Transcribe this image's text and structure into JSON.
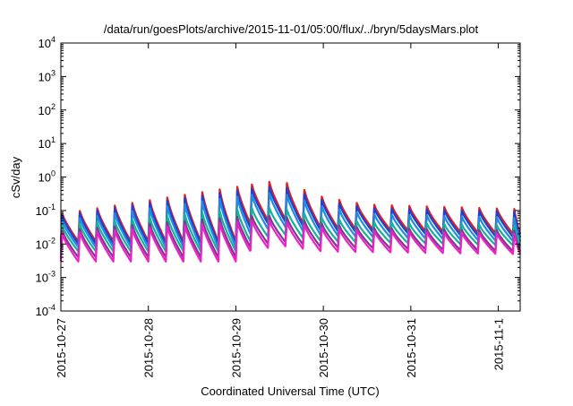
{
  "chart_data": {
    "type": "line",
    "title": "/data/run/goesPlots/archive/2015-11-01/05:00/flux/../bryn/5daysMars.plot",
    "xlabel": "Coordinated Universal Time (UTC)",
    "ylabel": "cSv/day",
    "x_range": [
      "2015-10-27",
      "2015-11-01T06:00"
    ],
    "ylim": [
      0.0001,
      10000
    ],
    "y_scale": "log",
    "grid": false,
    "legend": "none",
    "x_ticks": [
      {
        "date": "2015-10-27",
        "label": "2015-10-27"
      },
      {
        "date": "2015-10-28",
        "label": "2015-10-28"
      },
      {
        "date": "2015-10-29",
        "label": "2015-10-29"
      },
      {
        "date": "2015-10-30",
        "label": "2015-10-30"
      },
      {
        "date": "2015-10-31",
        "label": "2015-10-31"
      },
      {
        "date": "2015-11-01",
        "label": "2015-11-1"
      }
    ],
    "y_ticks": [
      {
        "value": 0.0001,
        "base": "10",
        "exp": "-4"
      },
      {
        "value": 0.001,
        "base": "10",
        "exp": "-3"
      },
      {
        "value": 0.01,
        "base": "10",
        "exp": "-2"
      },
      {
        "value": 0.1,
        "base": "10",
        "exp": "-1"
      },
      {
        "value": 1,
        "base": "10",
        "exp": "0"
      },
      {
        "value": 10,
        "base": "10",
        "exp": "1"
      },
      {
        "value": 100,
        "base": "10",
        "exp": "2"
      },
      {
        "value": 1000,
        "base": "10",
        "exp": "3"
      },
      {
        "value": 10000,
        "base": "10",
        "exp": "4"
      }
    ],
    "sawtooth": {
      "cycle_days": 0.2,
      "segments": [
        {
          "from": "2015-10-27",
          "to": "2015-10-29T04:00"
        },
        {
          "from": "2015-10-29T04:00",
          "to": "2015-11-01T06:00"
        }
      ]
    },
    "series": [
      {
        "color": "#e0201b",
        "peaks": [
          {
            "x": "2015-10-27T00:00",
            "y": 0.08
          },
          {
            "x": "2015-10-29T04:30",
            "y": 0.6
          },
          {
            "x": "2015-10-29T12:00",
            "y": 0.8
          },
          {
            "x": "2015-10-30T00:00",
            "y": 0.25
          },
          {
            "x": "2015-10-30T12:00",
            "y": 0.15
          },
          {
            "x": "2015-11-01T06:00",
            "y": 0.11
          }
        ],
        "troughs": [
          {
            "x": "2015-10-27T00:00",
            "y": 0.012
          },
          {
            "x": "2015-10-29T03:00",
            "y": 0.012
          },
          {
            "x": "2015-10-29T04:00",
            "y": 0.04
          },
          {
            "x": "2015-10-29T12:00",
            "y": 0.06
          },
          {
            "x": "2015-10-30T00:00",
            "y": 0.03
          },
          {
            "x": "2015-11-01T06:00",
            "y": 0.02
          }
        ]
      },
      {
        "color": "#1e3fd8",
        "peaks": [
          {
            "x": "2015-10-27T00:00",
            "y": 0.07
          },
          {
            "x": "2015-10-29T04:30",
            "y": 0.45
          },
          {
            "x": "2015-10-29T12:00",
            "y": 0.55
          },
          {
            "x": "2015-10-30T00:00",
            "y": 0.2
          },
          {
            "x": "2015-10-30T12:00",
            "y": 0.12
          },
          {
            "x": "2015-11-01T06:00",
            "y": 0.09
          }
        ],
        "troughs": [
          {
            "x": "2015-10-27T00:00",
            "y": 0.01
          },
          {
            "x": "2015-10-29T03:00",
            "y": 0.01
          },
          {
            "x": "2015-10-29T04:00",
            "y": 0.03
          },
          {
            "x": "2015-10-29T12:00",
            "y": 0.05
          },
          {
            "x": "2015-10-30T00:00",
            "y": 0.025
          },
          {
            "x": "2015-11-01T06:00",
            "y": 0.016
          }
        ]
      },
      {
        "color": "#1f8ce0",
        "peaks": [
          {
            "x": "2015-10-27T00:00",
            "y": 0.05
          },
          {
            "x": "2015-10-29T04:30",
            "y": 0.3
          },
          {
            "x": "2015-10-29T12:00",
            "y": 0.35
          },
          {
            "x": "2015-10-30T00:00",
            "y": 0.13
          },
          {
            "x": "2015-10-30T12:00",
            "y": 0.08
          },
          {
            "x": "2015-11-01T06:00",
            "y": 0.06
          }
        ],
        "troughs": [
          {
            "x": "2015-10-27T00:00",
            "y": 0.008
          },
          {
            "x": "2015-10-29T03:00",
            "y": 0.008
          },
          {
            "x": "2015-10-29T04:00",
            "y": 0.02
          },
          {
            "x": "2015-10-29T12:00",
            "y": 0.035
          },
          {
            "x": "2015-10-30T00:00",
            "y": 0.018
          },
          {
            "x": "2015-11-01T06:00",
            "y": 0.012
          }
        ]
      },
      {
        "color": "#12b39a",
        "peaks": [
          {
            "x": "2015-10-27T00:00",
            "y": 0.035
          },
          {
            "x": "2015-10-29T04:30",
            "y": 0.12
          },
          {
            "x": "2015-10-29T12:00",
            "y": 0.12
          },
          {
            "x": "2015-10-30T00:00",
            "y": 0.06
          },
          {
            "x": "2015-10-30T12:00",
            "y": 0.045
          },
          {
            "x": "2015-11-01T06:00",
            "y": 0.035
          }
        ],
        "troughs": [
          {
            "x": "2015-10-27T00:00",
            "y": 0.006
          },
          {
            "x": "2015-10-29T03:00",
            "y": 0.006
          },
          {
            "x": "2015-10-29T04:00",
            "y": 0.012
          },
          {
            "x": "2015-10-29T12:00",
            "y": 0.02
          },
          {
            "x": "2015-10-30T00:00",
            "y": 0.012
          },
          {
            "x": "2015-11-01T06:00",
            "y": 0.009
          }
        ]
      },
      {
        "color": "#7a3b8c",
        "peaks": [
          {
            "x": "2015-10-27T00:00",
            "y": 0.025
          },
          {
            "x": "2015-10-29T04:30",
            "y": 0.07
          },
          {
            "x": "2015-10-29T12:00",
            "y": 0.07
          },
          {
            "x": "2015-10-30T00:00",
            "y": 0.04
          },
          {
            "x": "2015-10-30T12:00",
            "y": 0.03
          },
          {
            "x": "2015-11-01T06:00",
            "y": 0.025
          }
        ],
        "troughs": [
          {
            "x": "2015-10-27T00:00",
            "y": 0.004
          },
          {
            "x": "2015-10-29T03:00",
            "y": 0.004
          },
          {
            "x": "2015-10-29T04:00",
            "y": 0.008
          },
          {
            "x": "2015-10-29T12:00",
            "y": 0.012
          },
          {
            "x": "2015-10-30T00:00",
            "y": 0.008
          },
          {
            "x": "2015-11-01T06:00",
            "y": 0.006
          }
        ]
      },
      {
        "color": "#f020c8",
        "peaks": [
          {
            "x": "2015-10-27T00:00",
            "y": 0.02
          },
          {
            "x": "2015-10-29T04:30",
            "y": 0.05
          },
          {
            "x": "2015-10-29T12:00",
            "y": 0.05
          },
          {
            "x": "2015-10-30T00:00",
            "y": 0.03
          },
          {
            "x": "2015-10-30T12:00",
            "y": 0.025
          },
          {
            "x": "2015-11-01T06:00",
            "y": 0.02
          }
        ],
        "troughs": [
          {
            "x": "2015-10-27T00:00",
            "y": 0.003
          },
          {
            "x": "2015-10-29T03:00",
            "y": 0.003
          },
          {
            "x": "2015-10-29T04:00",
            "y": 0.006
          },
          {
            "x": "2015-10-29T12:00",
            "y": 0.009
          },
          {
            "x": "2015-10-30T00:00",
            "y": 0.006
          },
          {
            "x": "2015-11-01T06:00",
            "y": 0.005
          }
        ]
      }
    ]
  }
}
